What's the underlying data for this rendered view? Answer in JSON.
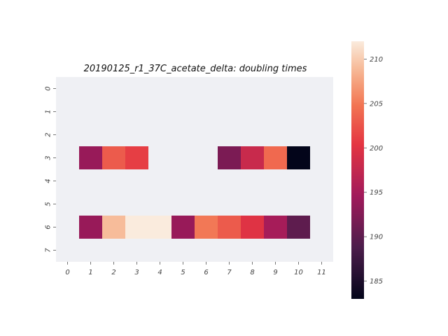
{
  "chart_data": {
    "type": "heatmap",
    "title": "20190125_r1_37C_acetate_delta: doubling times",
    "xlabel": "",
    "ylabel": "",
    "x_categories": [
      "0",
      "1",
      "2",
      "3",
      "4",
      "5",
      "6",
      "7",
      "8",
      "9",
      "10",
      "11"
    ],
    "y_categories": [
      "0",
      "1",
      "2",
      "3",
      "4",
      "5",
      "6",
      "7"
    ],
    "values": [
      [
        null,
        null,
        null,
        null,
        null,
        null,
        null,
        null,
        null,
        null,
        null,
        null
      ],
      [
        null,
        null,
        null,
        null,
        null,
        null,
        null,
        null,
        null,
        null,
        null,
        null
      ],
      [
        null,
        null,
        null,
        null,
        null,
        null,
        null,
        null,
        null,
        null,
        null,
        null
      ],
      [
        null,
        194,
        203,
        201,
        null,
        null,
        null,
        192,
        198,
        204,
        183,
        null
      ],
      [
        null,
        null,
        null,
        null,
        null,
        null,
        null,
        null,
        null,
        null,
        null,
        null
      ],
      [
        null,
        null,
        null,
        null,
        null,
        null,
        null,
        null,
        null,
        null,
        null,
        null
      ],
      [
        null,
        194,
        209,
        212,
        212,
        194,
        205,
        203,
        200,
        195,
        190,
        null
      ],
      [
        null,
        null,
        null,
        null,
        null,
        null,
        null,
        null,
        null,
        null,
        null,
        null
      ]
    ],
    "color_range": [
      183,
      212
    ],
    "colorbar_ticks": [
      "185",
      "190",
      "195",
      "200",
      "205",
      "210"
    ],
    "colormap": "rocket",
    "missing_color": "#eff0f4",
    "grid": false
  }
}
